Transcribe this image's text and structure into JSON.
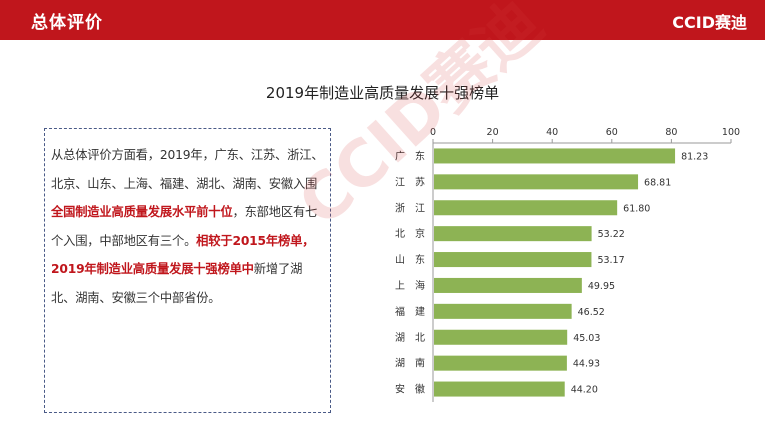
{
  "header": {
    "title": "总体评价",
    "logo_text": "CCID赛迪"
  },
  "watermark_text": "CCID赛迪",
  "summary": {
    "text_1": "从总体评价方面看，2019年，广东、江苏、浙江、北京、山东、上海、福建、湖北、湖南、安徽入围",
    "highlight_1": "全国制造业高质量发展水平前十位",
    "text_2": "，东部地区有七个入围，中部地区有三个。",
    "highlight_2": "相较于2015年榜单，2019年制造业高质量发展十强榜单中",
    "text_3": "新增了湖北、湖南、安徽三个中部省份。"
  },
  "colors": {
    "header_bg": "#c0161c",
    "bar_fill": "#8db354",
    "highlight": "#c0161c"
  },
  "chart_data": {
    "type": "bar",
    "orientation": "horizontal",
    "title": "2019年制造业高质量发展十强榜单",
    "categories": [
      "广　东",
      "江　苏",
      "浙　江",
      "北　京",
      "山　东",
      "上　海",
      "福　建",
      "湖　北",
      "湖　南",
      "安　徽"
    ],
    "values": [
      81.23,
      68.81,
      61.8,
      53.22,
      53.17,
      49.95,
      46.52,
      45.03,
      44.93,
      44.2
    ],
    "value_labels": [
      "81.23",
      "68.81",
      "61.80",
      "53.22",
      "53.17",
      "49.95",
      "46.52",
      "45.03",
      "44.93",
      "44.20"
    ],
    "xlim": [
      0,
      100
    ],
    "xticks": [
      0,
      20,
      40,
      60,
      80,
      100
    ],
    "xtick_labels": [
      "0",
      "20",
      "40",
      "60",
      "80",
      "100"
    ],
    "axis_position": "top",
    "grid": false,
    "legend": "none"
  }
}
